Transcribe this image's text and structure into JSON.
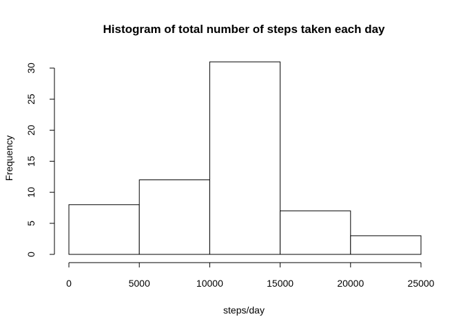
{
  "chart_data": {
    "type": "bar",
    "title": "Histogram of total number of steps taken each day",
    "xlabel": "steps/day",
    "ylabel": "Frequency",
    "bins": [
      {
        "from": 0,
        "to": 5000,
        "count": 8
      },
      {
        "from": 5000,
        "to": 10000,
        "count": 12
      },
      {
        "from": 10000,
        "to": 15000,
        "count": 31
      },
      {
        "from": 15000,
        "to": 20000,
        "count": 7
      },
      {
        "from": 20000,
        "to": 25000,
        "count": 3
      }
    ],
    "xticks": [
      0,
      5000,
      10000,
      15000,
      20000,
      25000
    ],
    "yticks": [
      0,
      5,
      10,
      15,
      20,
      25,
      30
    ],
    "xlim": [
      0,
      25000
    ],
    "ylim": [
      0,
      31
    ],
    "grid": false,
    "bar_fill": "#ffffff",
    "bar_stroke": "#000000"
  }
}
